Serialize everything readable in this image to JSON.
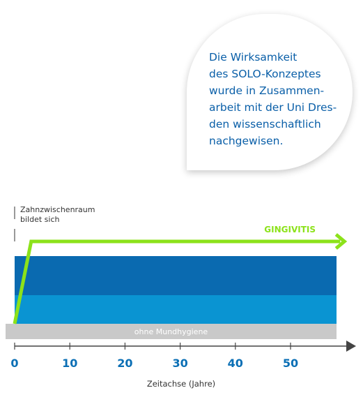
{
  "info_bubble": {
    "text": "   Die Wirksamkeit\ndes SOLO-Konzeptes\nwurde in Zusammen-\narbeit mit der Uni Dres-\nden wissenschaftlich\nnachgewisen."
  },
  "colors": {
    "dark_blue": "#0a6ab0",
    "light_blue": "#0a94d2",
    "gray": "#c9c9c9",
    "green": "#8ce21a",
    "axis": "#444444",
    "tick_text": "#0a6fb5"
  },
  "chart_data": {
    "type": "line",
    "annotation": "Zahnzwischenraum\nbildet sich",
    "xlabel": "Zeitachse (Jahre)",
    "ylabel": "",
    "xlim": [
      0,
      60
    ],
    "xticks": [
      0,
      10,
      20,
      30,
      40,
      50
    ],
    "bands": [
      {
        "name": "ohne Mundhygiene",
        "color": "#c9c9c9"
      },
      {
        "name": "",
        "color": "#0a94d2"
      },
      {
        "name": "",
        "color": "#0a6ab0"
      }
    ],
    "series": [
      {
        "name": "GINGIVITIS",
        "color": "#8ce21a",
        "x": [
          0,
          3,
          59
        ],
        "level": [
          "start",
          "top",
          "top"
        ]
      }
    ]
  }
}
